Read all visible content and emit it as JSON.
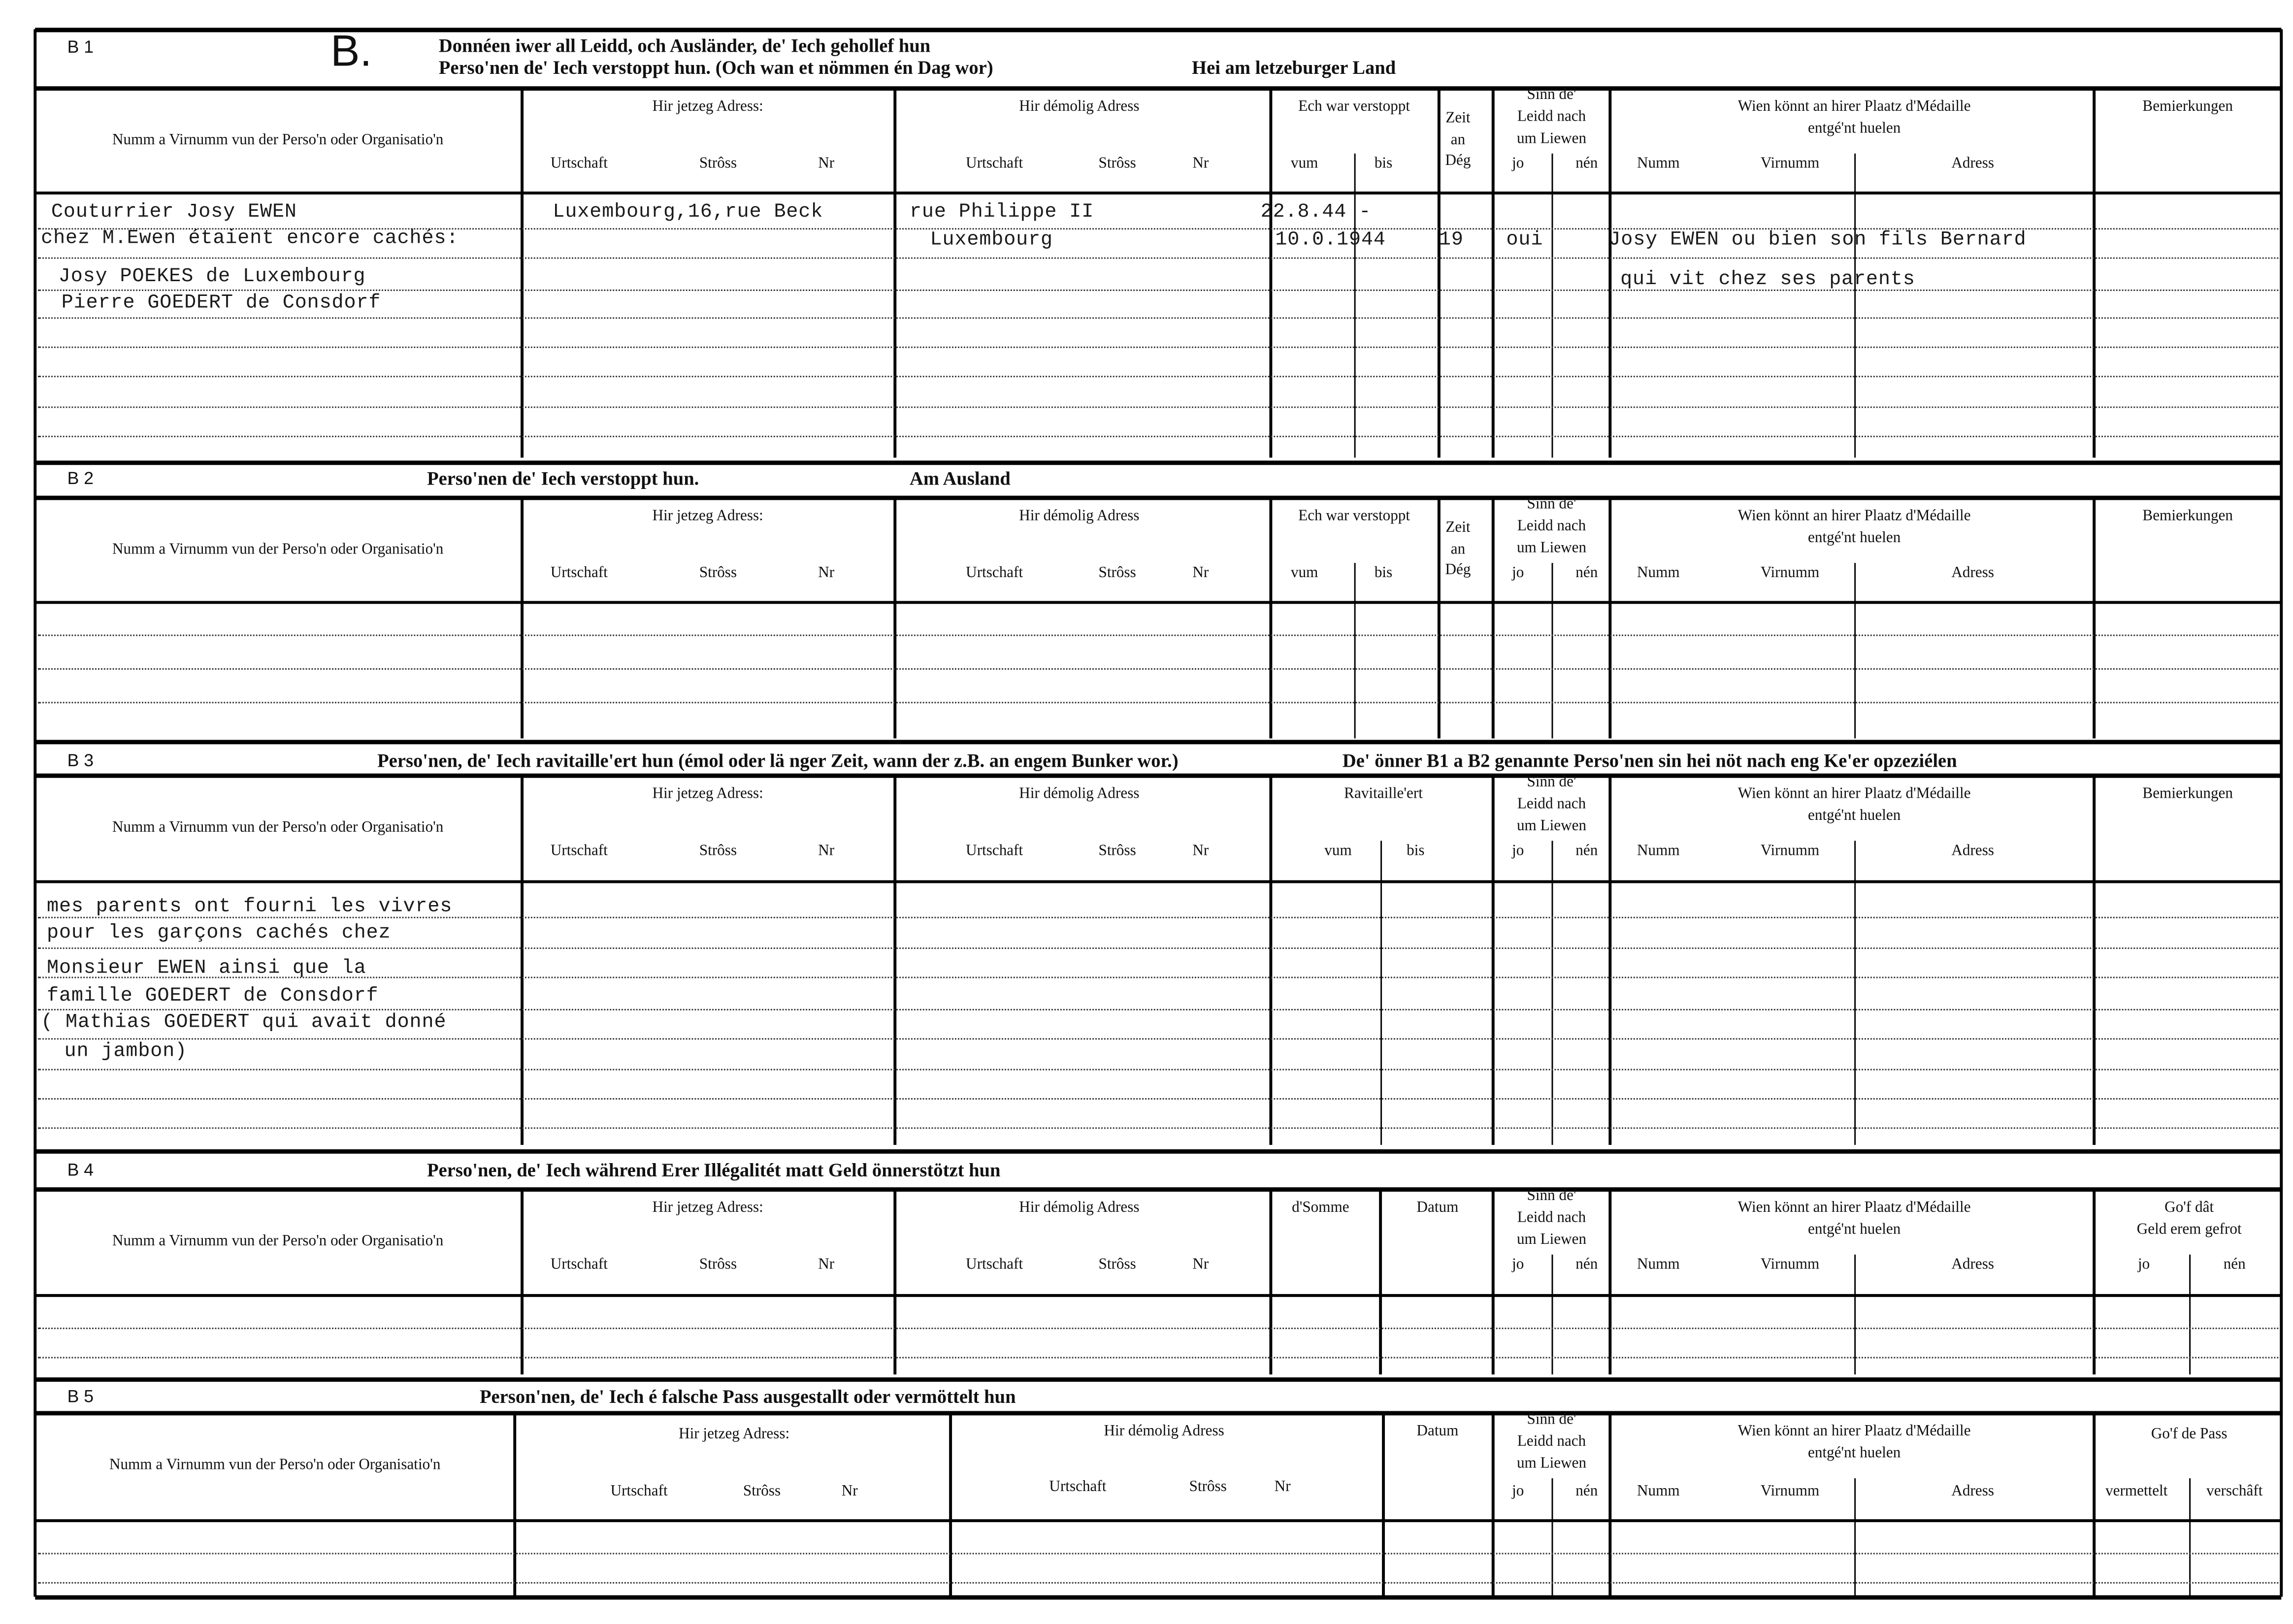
{
  "sections": [
    {
      "code": "B 1",
      "letter": "B.",
      "title": [
        "Donnéen iwer all Leidd, och Ausländer, de' Iech gehollef hun",
        "Perso'nen de' Iech verstoppt hun. (Och wan et nömmen én Dag wor)",
        "Hei am letzeburger Land"
      ],
      "header": {
        "name": "Numm a Virnumm vun der Perso'n oder Organisatio'n",
        "cur": {
          "title": "Hir jetzeg Adress:",
          "sub": [
            "Urtschaft",
            "Strôss",
            "Nr"
          ]
        },
        "former": {
          "title": "Hir démolig Adress",
          "sub": [
            "Urtschaft",
            "Strôss",
            "Nr"
          ]
        },
        "period": {
          "title": "Ech war verstoppt",
          "sub": [
            "vum",
            "bis"
          ]
        },
        "days": [
          "Zeit",
          "an",
          "Dég"
        ],
        "survived": {
          "title": [
            "Sinn de'",
            "Leidd nach",
            "um Liewen"
          ],
          "sub": [
            "jo",
            "nén"
          ]
        },
        "medal": {
          "title": [
            "Wien könnt an hirer Plaatz d'Médaille",
            "entgé'nt huelen"
          ],
          "sub": [
            "Numm",
            "Virnumm",
            "Adress"
          ]
        },
        "remarks": "Bemierkungen"
      },
      "entries": [
        "Couturrier Josy EWEN",
        "chez M.Ewen étaient encore cachés:",
        "Josy POEKES de Luxembourg",
        "Pierre GOEDERT de Consdorf",
        "Luxembourg,16,rue Beck",
        "rue Philippe II",
        "Luxembourg",
        "22.8.44 -",
        "10.0.1944",
        "19",
        "oui",
        "Josy EWEN ou bien son fils Bernard",
        "qui vit chez ses parents"
      ]
    },
    {
      "code": "B 2",
      "title": [
        "Perso'nen de' Iech verstoppt hun.",
        "Am Ausland"
      ],
      "header": {
        "name": "Numm a Virnumm vun der Perso'n oder Organisatio'n",
        "cur": {
          "title": "Hir jetzeg Adress:",
          "sub": [
            "Urtschaft",
            "Strôss",
            "Nr"
          ]
        },
        "former": {
          "title": "Hir démolig Adress",
          "sub": [
            "Urtschaft",
            "Strôss",
            "Nr"
          ]
        },
        "period": {
          "title": "Ech war verstoppt",
          "sub": [
            "vum",
            "bis"
          ]
        },
        "days": [
          "Zeit",
          "an",
          "Dég"
        ],
        "survived": {
          "title": [
            "Sinn de'",
            "Leidd nach",
            "um Liewen"
          ],
          "sub": [
            "jo",
            "nén"
          ]
        },
        "medal": {
          "title": [
            "Wien könnt an hirer Plaatz d'Médaille",
            "entgé'nt huelen"
          ],
          "sub": [
            "Numm",
            "Virnumm",
            "Adress"
          ]
        },
        "remarks": "Bemierkungen"
      },
      "entries": []
    },
    {
      "code": "B 3",
      "title": [
        "Perso'nen, de' Iech ravitaille'ert hun (émol oder lä nger Zeit, wann der z.B. an engem Bunker wor.)",
        "De' önner B1 a B2 genannte Perso'nen sin hei nöt nach eng Ke'er opzeziélen"
      ],
      "header": {
        "name": "Numm a Virnumm vun der Perso'n oder Organisatio'n",
        "cur": {
          "title": "Hir jetzeg Adress:",
          "sub": [
            "Urtschaft",
            "Strôss",
            "Nr"
          ]
        },
        "former": {
          "title": "Hir démolig Adress",
          "sub": [
            "Urtschaft",
            "Strôss",
            "Nr"
          ]
        },
        "period": {
          "title": "Ravitaille'ert",
          "sub": [
            "vum",
            "bis"
          ]
        },
        "survived": {
          "title": [
            "Sinn de'",
            "Leidd nach",
            "um Liewen"
          ],
          "sub": [
            "jo",
            "nén"
          ]
        },
        "medal": {
          "title": [
            "Wien könnt an hirer Plaatz d'Médaille",
            "entgé'nt huelen"
          ],
          "sub": [
            "Numm",
            "Virnumm",
            "Adress"
          ]
        },
        "remarks": "Bemierkungen"
      },
      "entries": [
        "mes parents ont fourni les vivres",
        "pour les garçons cachés chez",
        "Monsieur EWEN ainsi que la",
        "famille GOEDERT de Consdorf",
        "( Mathias GOEDERT qui avait donné",
        "un jambon)"
      ]
    },
    {
      "code": "B 4",
      "title": [
        "Perso'nen, de' Iech während Erer Illégalitét matt Geld önnerstötzt hun"
      ],
      "header": {
        "name": "Numm a Virnumm vun der Perso'n oder Organisatio'n",
        "cur": {
          "title": "Hir jetzeg Adress:",
          "sub": [
            "Urtschaft",
            "Strôss",
            "Nr"
          ]
        },
        "former": {
          "title": "Hir démolig Adress",
          "sub": [
            "Urtschaft",
            "Strôss",
            "Nr"
          ]
        },
        "sum": "d'Somme",
        "date": "Datum",
        "survived": {
          "title": [
            "Sinn de'",
            "Leidd nach",
            "um Liewen"
          ],
          "sub": [
            "jo",
            "nén"
          ]
        },
        "medal": {
          "title": [
            "Wien könnt an hirer Plaatz d'Médaille",
            "entgé'nt huelen"
          ],
          "sub": [
            "Numm",
            "Virnumm",
            "Adress"
          ]
        },
        "gof": {
          "title": [
            "Go'f dât",
            "Geld erem gefrot"
          ],
          "sub": [
            "jo",
            "nén"
          ]
        }
      },
      "entries": []
    },
    {
      "code": "B 5",
      "title": [
        "Person'nen, de' Iech é falsche Pass ausgestallt oder vermöttelt hun"
      ],
      "header": {
        "name": "Numm a Virnumm vun der Perso'n oder Organisatio'n",
        "cur": {
          "title": "Hir jetzeg Adress:",
          "sub": [
            "Urtschaft",
            "Strôss",
            "Nr"
          ]
        },
        "former": {
          "title": "Hir démolig Adress",
          "sub": [
            "Urtschaft",
            "Strôss",
            "Nr"
          ]
        },
        "date": "Datum",
        "survived": {
          "title": [
            "Sinn de'",
            "Leidd nach",
            "um Liewen"
          ],
          "sub": [
            "jo",
            "nén"
          ]
        },
        "medal": {
          "title": [
            "Wien könnt an hirer Plaatz d'Médaille",
            "entgé'nt huelen"
          ],
          "sub": [
            "Numm",
            "Virnumm",
            "Adress"
          ]
        },
        "pass": {
          "title": "Go'f de Pass",
          "sub": [
            "vermettelt",
            "verschâft"
          ]
        }
      },
      "entries": []
    }
  ]
}
